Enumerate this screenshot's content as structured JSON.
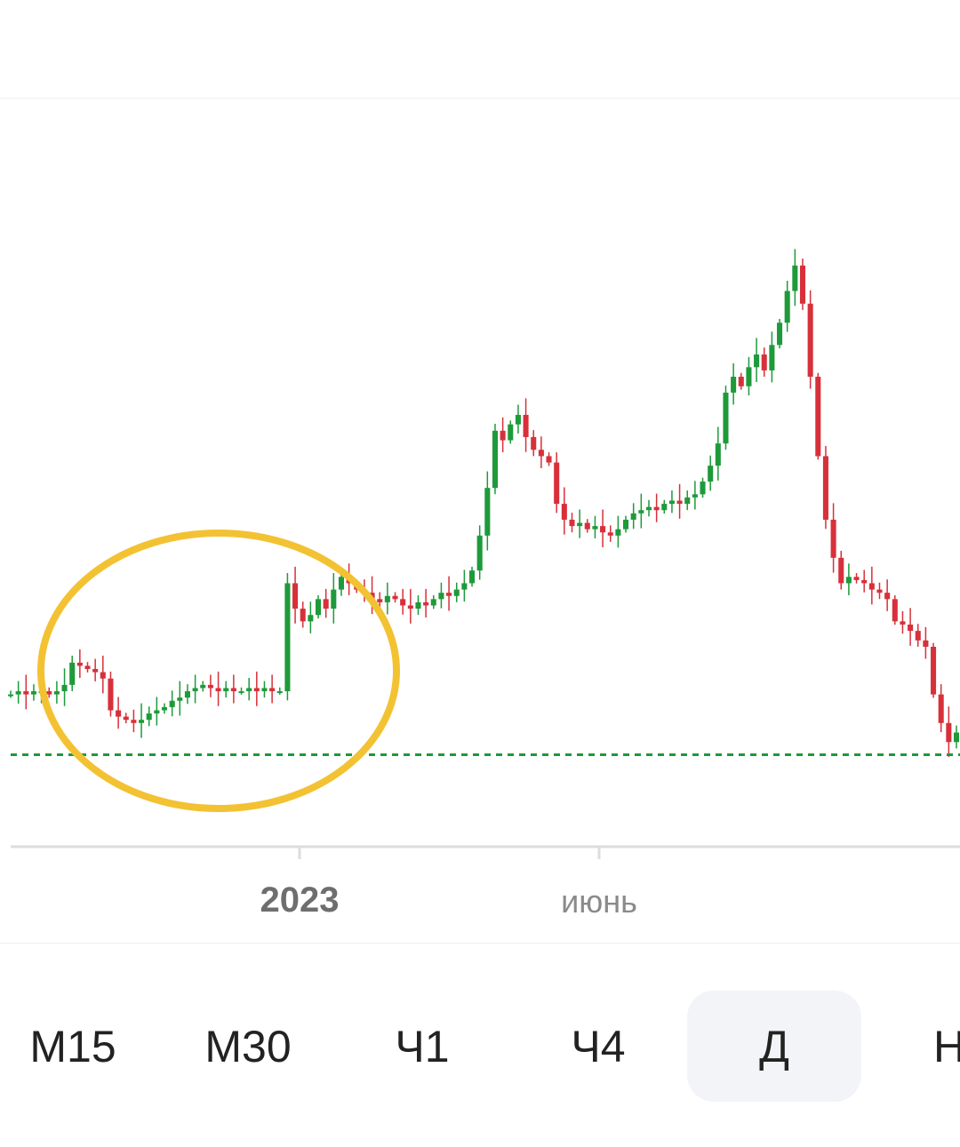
{
  "chart_data": {
    "type": "candlestick",
    "timeframe": "Д",
    "x_tick_labels": [
      "2023",
      "июнь"
    ],
    "bullish_color": "#1e9a3a",
    "bearish_color": "#d8303a",
    "reference_line_color": "#1e9a3a",
    "highlight_ellipse_color": "#f3c233",
    "close_series": [
      0.95,
      0.96,
      0.95,
      0.96,
      0.96,
      0.95,
      0.96,
      0.98,
      1.05,
      1.04,
      1.03,
      1.02,
      1.0,
      0.9,
      0.88,
      0.87,
      0.86,
      0.87,
      0.89,
      0.9,
      0.91,
      0.93,
      0.94,
      0.96,
      0.97,
      0.98,
      0.97,
      0.96,
      0.97,
      0.96,
      0.96,
      0.97,
      0.96,
      0.97,
      0.96,
      0.96,
      1.3,
      1.22,
      1.18,
      1.2,
      1.25,
      1.22,
      1.28,
      1.32,
      1.3,
      1.28,
      1.27,
      1.25,
      1.24,
      1.26,
      1.25,
      1.23,
      1.22,
      1.24,
      1.23,
      1.25,
      1.27,
      1.26,
      1.28,
      1.3,
      1.34,
      1.45,
      1.6,
      1.78,
      1.75,
      1.8,
      1.83,
      1.76,
      1.72,
      1.7,
      1.68,
      1.55,
      1.5,
      1.48,
      1.49,
      1.47,
      1.48,
      1.46,
      1.45,
      1.47,
      1.5,
      1.52,
      1.53,
      1.54,
      1.53,
      1.55,
      1.56,
      1.55,
      1.57,
      1.58,
      1.62,
      1.67,
      1.74,
      1.9,
      1.95,
      1.92,
      1.98,
      2.02,
      1.97,
      2.05,
      2.12,
      2.22,
      2.3,
      2.18,
      1.95,
      1.7,
      1.5,
      1.38,
      1.3,
      1.32,
      1.31,
      1.3,
      1.28,
      1.27,
      1.25,
      1.18,
      1.17,
      1.15,
      1.12,
      1.1,
      0.95,
      0.86,
      0.8,
      0.83
    ],
    "reference_level": 0.76
  },
  "timeframes": [
    {
      "label": "М15",
      "active": false
    },
    {
      "label": "М30",
      "active": false
    },
    {
      "label": "Ч1",
      "active": false
    },
    {
      "label": "Ч4",
      "active": false
    },
    {
      "label": "Д",
      "active": true
    },
    {
      "label": "Н",
      "active": false
    }
  ]
}
